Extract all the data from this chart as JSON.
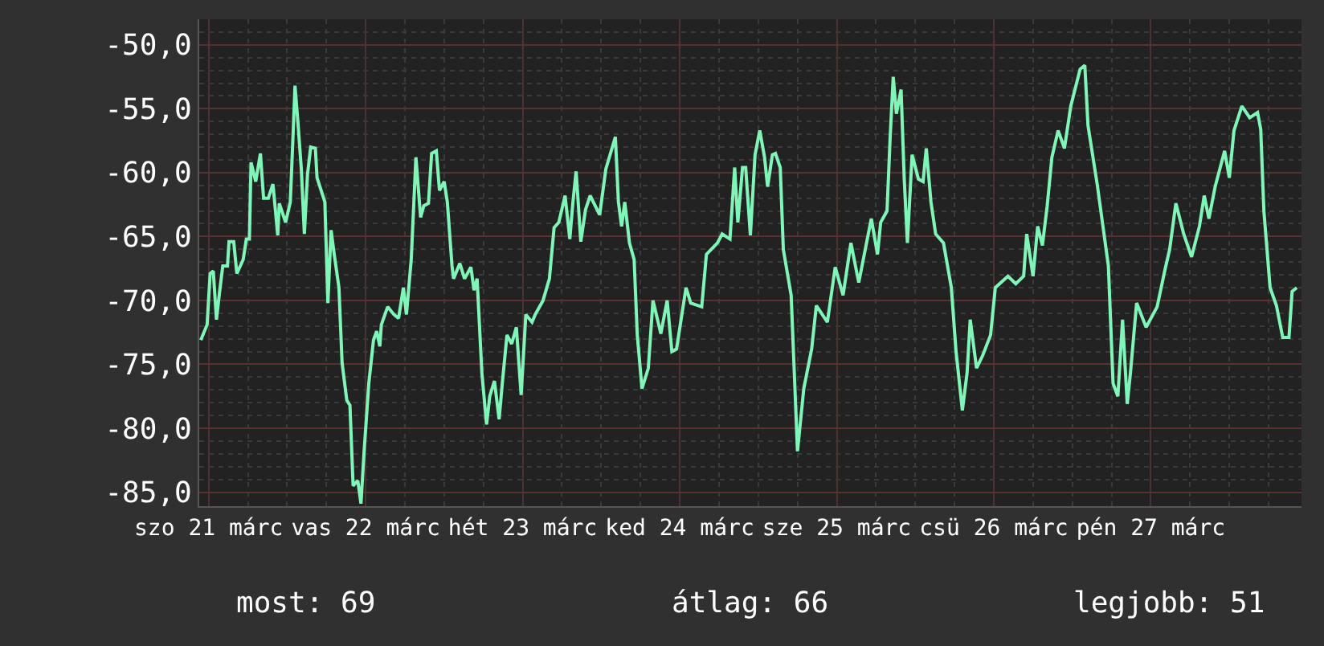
{
  "chart_data": {
    "type": "line",
    "x": [
      "--03-21T10:48",
      "--03-21T11:46",
      "--03-21T12:14",
      "--03-21T12:43",
      "--03-21T13:12",
      "--03-21T13:41",
      "--03-21T14:10",
      "--03-21T14:53",
      "--03-21T15:07",
      "--03-21T15:50",
      "--03-21T16:19",
      "--03-21T17:17",
      "--03-21T17:46",
      "--03-21T18:14",
      "--03-21T18:29",
      "--03-21T19:12",
      "--03-21T19:55",
      "--03-21T20:24",
      "--03-21T21:07",
      "--03-21T21:50",
      "--03-21T22:34",
      "--03-21T22:48",
      "--03-21T23:31",
      "--03-21T23:46",
      "--03-22T00:29",
      "--03-22T00:58",
      "--03-22T01:12",
      "--03-22T01:41",
      "--03-22T02:10",
      "--03-22T02:38",
      "--03-22T03:07",
      "--03-22T03:36",
      "--03-22T04:19",
      "--03-22T04:34",
      "--03-22T05:46",
      "--03-22T06:14",
      "--03-22T06:43",
      "--03-22T07:12",
      "--03-22T07:55",
      "--03-22T08:24",
      "--03-22T09:07",
      "--03-22T09:36",
      "--03-22T10:05",
      "--03-22T10:48",
      "--03-22T11:17",
      "--03-22T11:46",
      "--03-22T12:29",
      "--03-22T13:12",
      "--03-22T13:41",
      "--03-22T14:10",
      "--03-22T14:24",
      "--03-22T15:22",
      "--03-22T16:19",
      "--03-22T17:02",
      "--03-22T17:46",
      "--03-22T18:14",
      "--03-22T18:58",
      "--03-22T19:41",
      "--03-22T20:24",
      "--03-22T20:53",
      "--03-22T21:36",
      "--03-22T22:05",
      "--03-22T22:48",
      "--03-22T23:17",
      "--03-23T00:00",
      "--03-23T00:29",
      "--03-23T01:12",
      "--03-23T01:26",
      "--03-23T02:24",
      "--03-23T03:07",
      "--03-23T04:05",
      "--03-23T04:34",
      "--03-23T05:02",
      "--03-23T05:46",
      "--03-23T06:29",
      "--03-23T06:58",
      "--03-23T07:41",
      "--03-23T08:24",
      "--03-23T08:53",
      "--03-23T09:36",
      "--03-23T10:19",
      "--03-23T11:02",
      "--03-23T11:46",
      "--03-23T12:29",
      "--03-23T13:26",
      "--03-23T13:55",
      "--03-23T15:07",
      "--03-23T16:05",
      "--03-23T16:48",
      "--03-23T17:31",
      "--03-23T18:29",
      "--03-23T19:12",
      "--03-23T19:41",
      "--03-23T20:10",
      "--03-23T20:53",
      "--03-23T21:36",
      "--03-23T22:19",
      "--03-23T23:46",
      "--03-24T00:43",
      "--03-24T02:10",
      "--03-24T02:38",
      "--03-24T03:07",
      "--03-24T03:36",
      "--03-24T04:19",
      "--03-24T05:02",
      "--03-24T05:31",
      "--03-24T06:14",
      "--03-24T07:12",
      "--03-24T07:55",
      "--03-24T09:07",
      "--03-24T10:05",
      "--03-24T10:48",
      "--03-24T11:31",
      "--03-24T12:58",
      "--03-24T13:41",
      "--03-24T15:22",
      "--03-24T16:05",
      "--03-24T17:46",
      "--03-24T18:29",
      "--03-24T19:41",
      "--03-24T20:24",
      "--03-24T20:53",
      "--03-24T21:36",
      "--03-24T22:05",
      "--03-24T22:48",
      "--03-24T23:31",
      "--03-25T00:14",
      "--03-25T00:58",
      "--03-25T01:26",
      "--03-25T02:10",
      "--03-25T02:38",
      "--03-25T03:22",
      "--03-25T03:50",
      "--03-25T05:02",
      "--03-25T06:00",
      "--03-25T06:58",
      "--03-25T08:10",
      "--03-25T08:53",
      "--03-25T10:34",
      "--03-25T11:46",
      "--03-25T12:58",
      "--03-25T14:10",
      "--03-25T15:22",
      "--03-25T17:17",
      "--03-25T18:14",
      "--03-25T18:43",
      "--03-25T19:41",
      "--03-25T20:10",
      "--03-25T20:38",
      "--03-25T21:07",
      "--03-25T21:50",
      "--03-25T22:19",
      "--03-25T22:48",
      "--03-25T23:31",
      "--03-26T00:29",
      "--03-26T01:12",
      "--03-26T01:41",
      "--03-26T02:24",
      "--03-26T03:07",
      "--03-26T04:19",
      "--03-26T05:31",
      "--03-26T06:14",
      "--03-26T07:12",
      "--03-26T07:55",
      "--03-26T08:24",
      "--03-26T09:22",
      "--03-26T10:19",
      "--03-26T11:31",
      "--03-26T12:14",
      "--03-26T14:10",
      "--03-26T15:22",
      "--03-26T16:34",
      "--03-26T17:02",
      "--03-26T18:00",
      "--03-26T18:43",
      "--03-26T19:26",
      "--03-26T20:10",
      "--03-26T20:53",
      "--03-26T21:50",
      "--03-26T22:48",
      "--03-26T23:46",
      "--03-27T01:12",
      "--03-27T01:55",
      "--03-27T02:24",
      "--03-27T03:50",
      "--03-27T05:31",
      "--03-27T06:14",
      "--03-27T06:58",
      "--03-27T07:41",
      "--03-27T08:24",
      "--03-27T08:53",
      "--03-27T09:50",
      "--03-27T11:17",
      "--03-27T12:58",
      "--03-27T14:10",
      "--03-27T14:53",
      "--03-27T15:50",
      "--03-27T17:02",
      "--03-27T18:14",
      "--03-27T19:26",
      "--03-27T20:10",
      "--03-27T20:53",
      "--03-27T21:50",
      "--03-27T23:17",
      "--03-28T00:00",
      "--03-28T00:43",
      "--03-28T01:55",
      "--03-28T03:07",
      "--03-28T04:19",
      "--03-28T04:48",
      "--03-28T05:17",
      "--03-28T06:14",
      "--03-28T07:12",
      "--03-28T08:10",
      "--03-28T09:07",
      "--03-28T09:36",
      "--03-28T10:19"
    ],
    "series": [
      {
        "color": "#7ff5b8",
        "values": [
          -73.1,
          -71.9,
          -67.9,
          -67.7,
          -71.5,
          -69.3,
          -67.3,
          -67.3,
          -65.4,
          -65.4,
          -67.9,
          -66.8,
          -65.2,
          -65.2,
          -59.2,
          -60.7,
          -58.5,
          -62.0,
          -62.0,
          -60.9,
          -64.9,
          -62.4,
          -63.5,
          -63.9,
          -62.3,
          -56.3,
          -53.2,
          -56.3,
          -59.7,
          -64.8,
          -60.1,
          -58.0,
          -58.1,
          -60.4,
          -62.3,
          -70.2,
          -64.5,
          -66.4,
          -69.0,
          -74.9,
          -77.8,
          -78.2,
          -84.5,
          -84.1,
          -85.9,
          -81.8,
          -76.5,
          -73.1,
          -72.4,
          -73.6,
          -71.9,
          -70.5,
          -71.1,
          -71.4,
          -69.0,
          -71.1,
          -66.8,
          -58.8,
          -63.5,
          -62.6,
          -62.4,
          -58.5,
          -58.3,
          -61.4,
          -60.7,
          -62.3,
          -67.3,
          -68.3,
          -67.1,
          -68.3,
          -67.4,
          -69.2,
          -68.3,
          -75.7,
          -79.7,
          -77.5,
          -76.3,
          -79.3,
          -76.5,
          -72.7,
          -73.4,
          -72.1,
          -77.4,
          -71.1,
          -71.7,
          -71.1,
          -70.0,
          -68.3,
          -64.3,
          -63.9,
          -61.8,
          -65.2,
          -62.3,
          -59.9,
          -65.4,
          -62.9,
          -61.8,
          -63.3,
          -59.7,
          -57.2,
          -62.3,
          -64.2,
          -62.3,
          -65.5,
          -66.8,
          -72.7,
          -76.9,
          -75.3,
          -70.0,
          -72.6,
          -70.0,
          -74.0,
          -73.8,
          -69.0,
          -70.2,
          -70.5,
          -66.4,
          -65.5,
          -64.8,
          -65.2,
          -59.6,
          -63.9,
          -59.6,
          -59.6,
          -64.9,
          -58.6,
          -56.7,
          -58.8,
          -61.1,
          -58.6,
          -58.5,
          -59.6,
          -66.0,
          -69.6,
          -81.8,
          -76.9,
          -73.8,
          -70.4,
          -71.7,
          -67.4,
          -69.6,
          -65.5,
          -68.6,
          -63.6,
          -66.4,
          -63.9,
          -63.0,
          -57.2,
          -52.5,
          -55.4,
          -53.5,
          -60.5,
          -65.5,
          -58.6,
          -60.5,
          -60.7,
          -58.1,
          -62.3,
          -64.8,
          -65.5,
          -69.0,
          -74.0,
          -78.6,
          -75.7,
          -71.5,
          -75.3,
          -74.3,
          -72.7,
          -69.0,
          -68.1,
          -68.7,
          -68.1,
          -64.8,
          -68.1,
          -64.2,
          -65.7,
          -62.6,
          -58.8,
          -56.7,
          -58.1,
          -54.8,
          -51.9,
          -51.6,
          -56.3,
          -61.0,
          -67.3,
          -76.5,
          -77.5,
          -71.5,
          -78.1,
          -75.7,
          -70.2,
          -72.1,
          -70.5,
          -67.6,
          -66.0,
          -62.4,
          -64.8,
          -66.6,
          -64.2,
          -61.8,
          -63.6,
          -61.1,
          -58.3,
          -60.4,
          -56.7,
          -54.8,
          -55.7,
          -55.3,
          -56.6,
          -63.0,
          -69.0,
          -70.4,
          -72.9,
          -72.9,
          -69.3,
          -69.0
        ]
      }
    ],
    "xlim": [
      "--03-21T10:34",
      "--03-28T11:02"
    ],
    "xticks": [
      {
        "value": "--03-21T12:00",
        "label": "szo 21 márc"
      },
      {
        "value": "--03-22T12:00",
        "label": "vas 22 márc"
      },
      {
        "value": "--03-23T12:00",
        "label": "hét 23 márc"
      },
      {
        "value": "--03-24T12:00",
        "label": "ked 24 márc"
      },
      {
        "value": "--03-25T12:00",
        "label": "sze 25 márc"
      },
      {
        "value": "--03-26T12:00",
        "label": "csü 26 márc"
      },
      {
        "value": "--03-27T12:00",
        "label": "pén 27 márc"
      }
    ],
    "ylim": [
      -86.1,
      -48.0
    ],
    "yticks": [
      {
        "value": -85,
        "label": "-85,0"
      },
      {
        "value": -80,
        "label": "-80,0"
      },
      {
        "value": -75,
        "label": "-75,0"
      },
      {
        "value": -70,
        "label": "-70,0"
      },
      {
        "value": -65,
        "label": "-65,0"
      },
      {
        "value": -60,
        "label": "-60,0"
      },
      {
        "value": -55,
        "label": "-55,0"
      },
      {
        "value": -50,
        "label": "-50,0"
      }
    ],
    "grid": true,
    "marker": "none",
    "line_style": "solid",
    "annotations": [
      "most: 69",
      "átlag: 66",
      "legjobb: 51"
    ]
  }
}
